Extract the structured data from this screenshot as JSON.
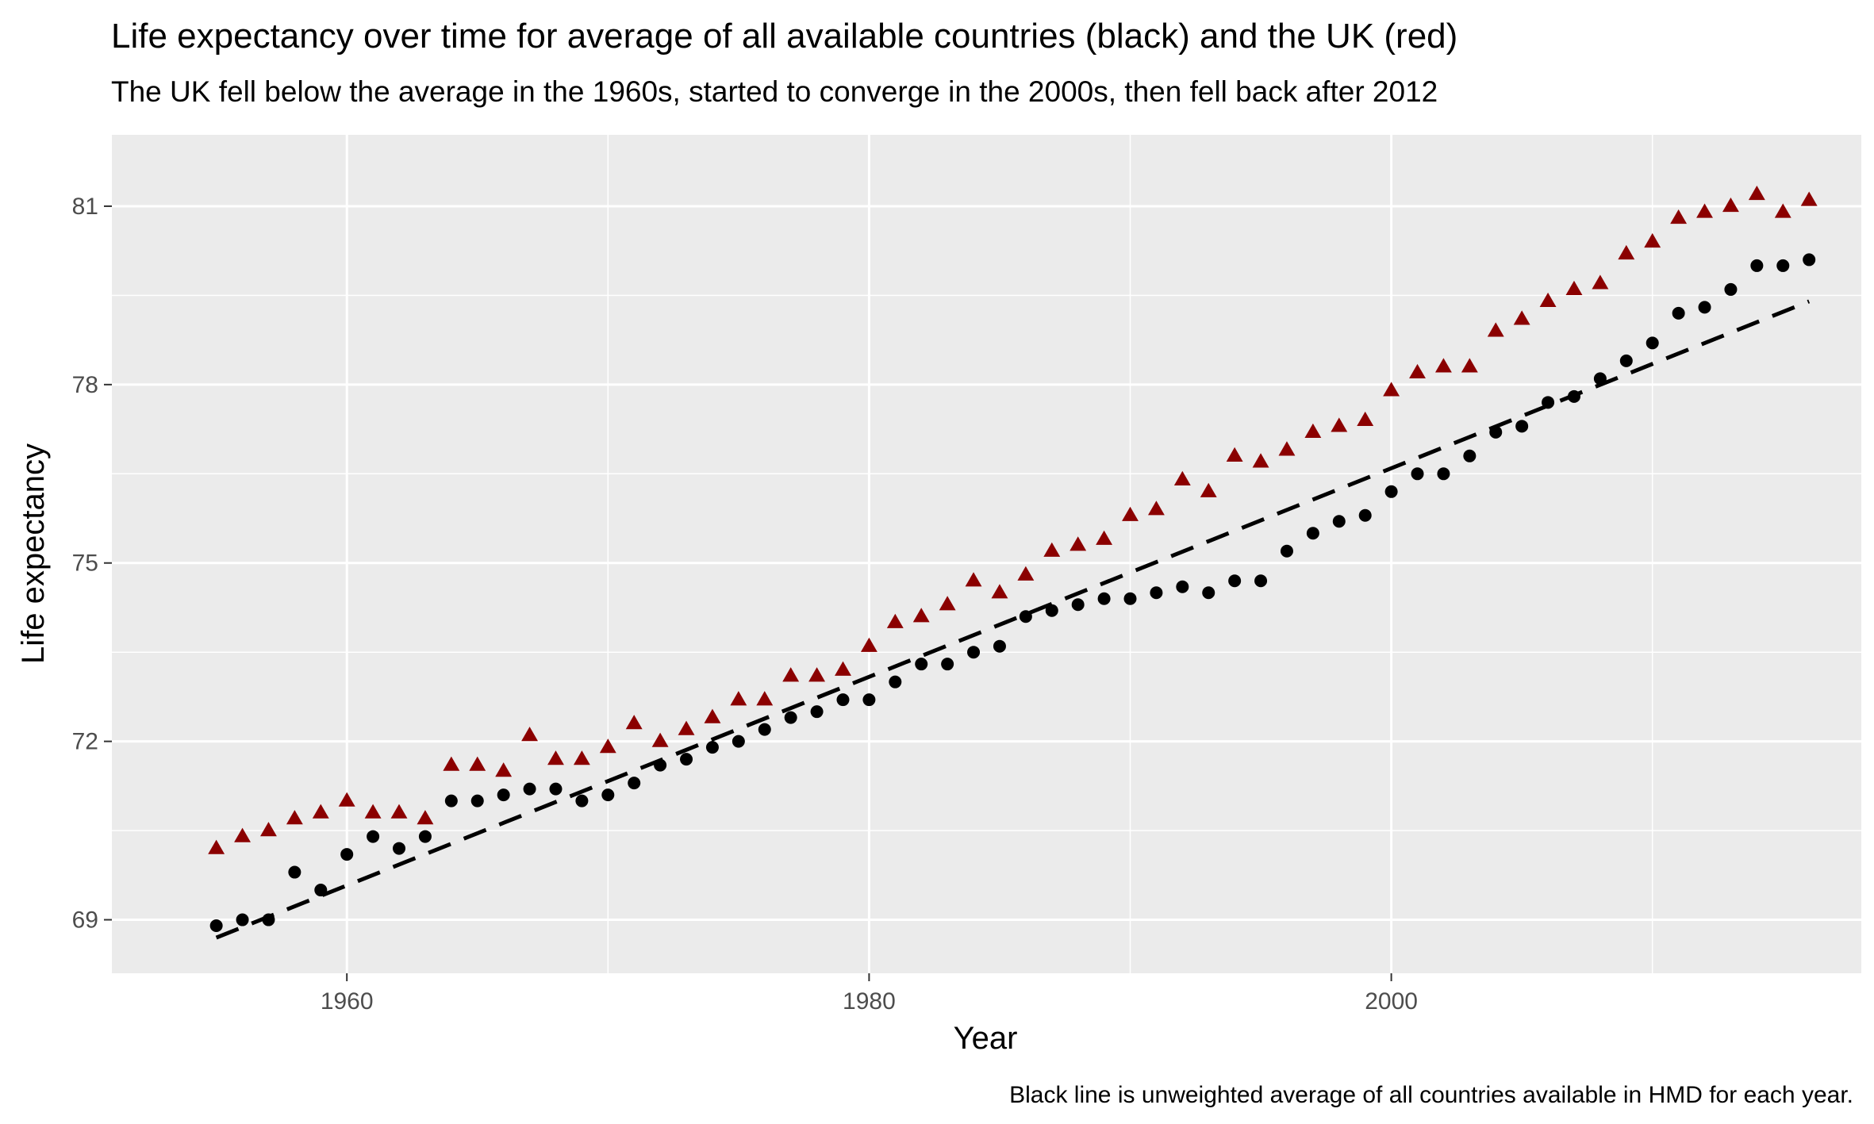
{
  "chart_data": {
    "type": "scatter",
    "title": "Life expectancy over time for average of all available countries (black) and the UK (red)",
    "subtitle": "The UK fell below the average in the 1960s, started to converge in the 2000s, then fell back after 2012",
    "xlabel": "Year",
    "ylabel": "Life expectancy",
    "caption": "Black line is unweighted average of all countries available in HMD for each year.",
    "xlim": [
      1951,
      2018
    ],
    "ylim": [
      68.1,
      82.2
    ],
    "x_ticks": [
      1960,
      1980,
      2000
    ],
    "x_tick_labels": [
      "1960",
      "1980",
      "2000"
    ],
    "y_ticks": [
      69,
      72,
      75,
      78,
      81
    ],
    "y_tick_labels": [
      "69",
      "72",
      "75",
      "78",
      "81"
    ],
    "grid": true,
    "background": "#ebebeb",
    "series": [
      {
        "marker": "triangle",
        "color": "#8b0000",
        "x": [
          1955,
          1956,
          1957,
          1958,
          1959,
          1960,
          1961,
          1962,
          1963,
          1964,
          1965,
          1966,
          1967,
          1968,
          1969,
          1970,
          1971,
          1972,
          1973,
          1974,
          1975,
          1976,
          1977,
          1978,
          1979,
          1980,
          1981,
          1982,
          1983,
          1984,
          1985,
          1986,
          1987,
          1988,
          1989,
          1990,
          1991,
          1992,
          1993,
          1994,
          1995,
          1996,
          1997,
          1998,
          1999,
          2000,
          2001,
          2002,
          2003,
          2004,
          2005,
          2006,
          2007,
          2008,
          2009,
          2010,
          2011,
          2012,
          2013,
          2014,
          2015,
          2016
        ],
        "values": [
          70.2,
          70.4,
          70.5,
          70.7,
          70.8,
          71.0,
          70.8,
          70.8,
          70.7,
          71.6,
          71.6,
          71.5,
          72.1,
          71.7,
          71.7,
          71.9,
          72.3,
          72.0,
          72.2,
          72.4,
          72.7,
          72.7,
          73.1,
          73.1,
          73.2,
          73.6,
          74.0,
          74.1,
          74.3,
          74.7,
          74.5,
          74.8,
          75.2,
          75.3,
          75.4,
          75.8,
          75.9,
          76.4,
          76.2,
          76.8,
          76.7,
          76.9,
          77.2,
          77.3,
          77.4,
          77.9,
          78.2,
          78.3,
          78.3,
          78.9,
          79.1,
          79.4,
          79.6,
          79.7,
          80.2,
          80.4,
          80.8,
          80.9,
          81.0,
          81.2,
          80.9,
          81.1
        ]
      },
      {
        "marker": "circle",
        "color": "#000000",
        "x": [
          1955,
          1956,
          1957,
          1958,
          1959,
          1960,
          1961,
          1962,
          1963,
          1964,
          1965,
          1966,
          1967,
          1968,
          1969,
          1970,
          1971,
          1972,
          1973,
          1974,
          1975,
          1976,
          1977,
          1978,
          1979,
          1980,
          1981,
          1982,
          1983,
          1984,
          1985,
          1986,
          1987,
          1988,
          1989,
          1990,
          1991,
          1992,
          1993,
          1994,
          1995,
          1996,
          1997,
          1998,
          1999,
          2000,
          2001,
          2002,
          2003,
          2004,
          2005,
          2006,
          2007,
          2008,
          2009,
          2010,
          2011,
          2012,
          2013,
          2014,
          2015,
          2016
        ],
        "values": [
          68.9,
          69.0,
          69.0,
          69.8,
          69.5,
          70.1,
          70.4,
          70.2,
          70.4,
          71.0,
          71.0,
          71.1,
          71.2,
          71.2,
          71.0,
          71.1,
          71.3,
          71.6,
          71.7,
          71.9,
          72.0,
          72.2,
          72.4,
          72.5,
          72.7,
          72.7,
          73.0,
          73.3,
          73.3,
          73.5,
          73.6,
          74.1,
          74.2,
          74.3,
          74.4,
          74.4,
          74.5,
          74.6,
          74.5,
          74.7,
          74.7,
          75.2,
          75.5,
          75.7,
          75.8,
          76.2,
          76.5,
          76.5,
          76.8,
          77.2,
          77.3,
          77.7,
          77.8,
          78.1,
          78.4,
          78.7,
          79.2,
          79.3,
          79.6,
          80.0,
          80.0,
          80.1
        ]
      },
      {
        "type": "line",
        "style": "dashed",
        "color": "#000000",
        "x": [
          1955,
          2016
        ],
        "values": [
          68.7,
          79.4
        ]
      }
    ]
  }
}
